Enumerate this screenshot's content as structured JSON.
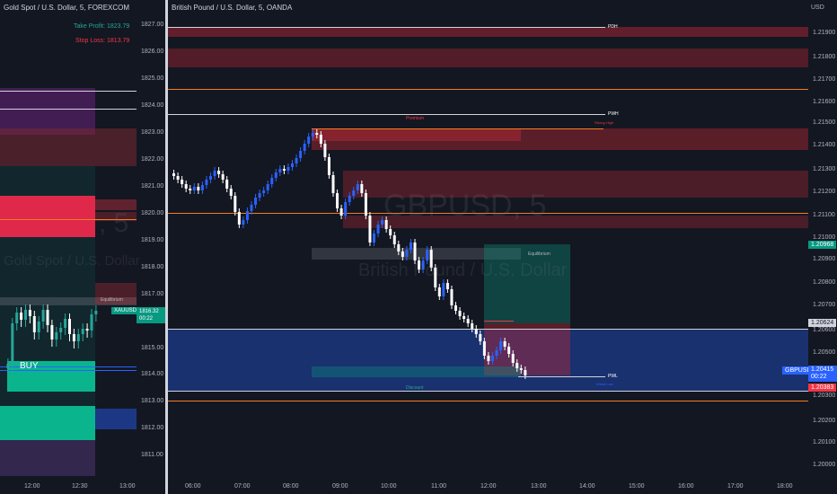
{
  "left": {
    "title": "Gold Spot / U.S. Dollar, 5, FOREXCOM",
    "take_profit": "Take Profit: 1823.79",
    "stop_loss": "Stop Loss: 1813.79",
    "watermark_line1": "Gold Spot / U.S. Dollar",
    "watermark_big": ", 5",
    "buy_label": "BUY",
    "equilibrium": "Equilibrium",
    "symbol_tag": "XAUUSD",
    "price_tag": "1816.32",
    "countdown": "00:22",
    "y_ticks": [
      "1827.00",
      "1826.00",
      "1825.00",
      "1824.00",
      "1823.00",
      "1822.00",
      "1821.00",
      "1820.00",
      "1819.00",
      "1818.00",
      "1817.00",
      "1815.00",
      "1814.00",
      "1813.00",
      "1812.00",
      "1811.00"
    ],
    "x_ticks": [
      "12:00",
      "12:30",
      "13:00"
    ]
  },
  "right": {
    "title": "British Pound / U.S. Dollar, 5, OANDA",
    "currency": "USD",
    "watermark_big": "GBPUSD, 5",
    "watermark_small": "British Pound / U.S. Dollar",
    "pdh": "PDH",
    "pwh": "PWH",
    "pwl": "PWL",
    "premium": "Premium",
    "strong_high": "Strong High",
    "equilibrium": "Equilibrium",
    "discount": "Discount",
    "weak_low": "Weak Low",
    "price_1": "1.20968",
    "price_2": "1.20624",
    "symbol_tag": "GBPUSD",
    "price_tag": "1.20415",
    "countdown": "00:22",
    "price_3": "1.20383",
    "y_ticks": [
      "1.21900",
      "1.21800",
      "1.21700",
      "1.21600",
      "1.21500",
      "1.21400",
      "1.21300",
      "1.21200",
      "1.21100",
      "1.21000",
      "1.20900",
      "1.20800",
      "1.20700",
      "1.20600",
      "1.20500",
      "1.20400",
      "1.20300",
      "1.20200",
      "1.20100",
      "1.20000"
    ],
    "x_ticks": [
      "06:00",
      "07:00",
      "08:00",
      "09:00",
      "10:00",
      "11:00",
      "12:00",
      "13:00",
      "14:00",
      "15:00",
      "16:00",
      "17:00",
      "18:00"
    ]
  },
  "colors": {
    "background": "#131722",
    "up": "#2962ff",
    "down": "#ffffff",
    "gold_up": "#26a69a",
    "gold_down": "#ffffff",
    "buy": "#089981",
    "red_zone": "#f23645",
    "blue_zone": "#1e4a9a",
    "orange_line": "#f57c1f"
  }
}
